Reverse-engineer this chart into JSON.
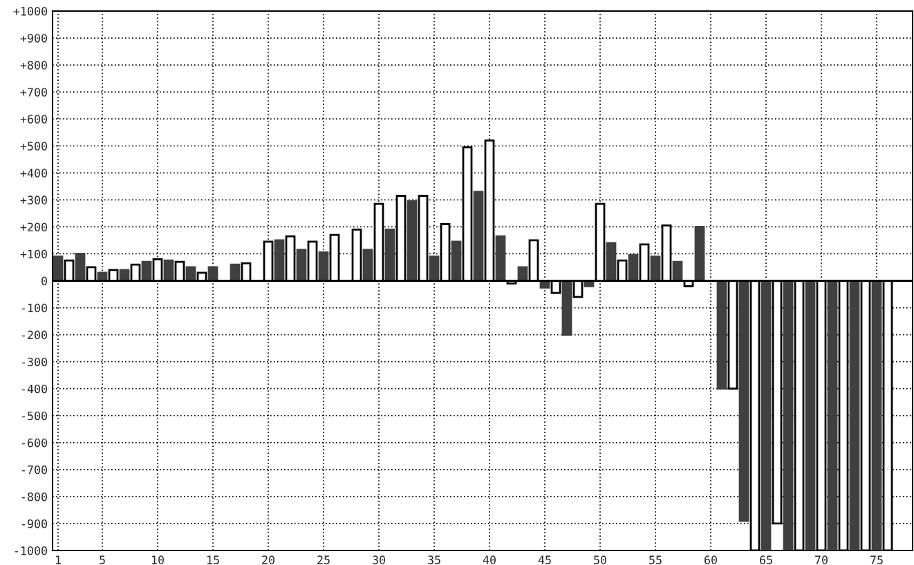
{
  "chart_data": {
    "type": "bar",
    "categories": [
      "1",
      null,
      null,
      null,
      "5",
      null,
      null,
      null,
      null,
      "10",
      null,
      null,
      null,
      null,
      "15",
      null,
      null,
      null,
      null,
      "20",
      null,
      null,
      null,
      null,
      "25",
      null,
      null,
      null,
      null,
      "30",
      null,
      null,
      null,
      null,
      "35",
      null,
      null,
      null,
      null,
      "40",
      null,
      null,
      null,
      null,
      "45",
      null,
      null,
      null,
      null,
      "50",
      null,
      null,
      null,
      null,
      "55",
      null,
      null,
      null,
      null,
      "60",
      null,
      null,
      null,
      null,
      "65",
      null,
      null,
      null,
      null,
      "70",
      null,
      null,
      null,
      null,
      "75",
      null
    ],
    "values": [
      90,
      75,
      100,
      50,
      30,
      40,
      40,
      60,
      70,
      80,
      75,
      70,
      50,
      30,
      50,
      null,
      60,
      65,
      0,
      145,
      150,
      165,
      115,
      145,
      105,
      170,
      0,
      190,
      115,
      285,
      190,
      315,
      295,
      315,
      90,
      210,
      145,
      495,
      330,
      520,
      165,
      -10,
      50,
      150,
      -25,
      -45,
      -200,
      -60,
      -20,
      285,
      140,
      75,
      95,
      135,
      90,
      205,
      70,
      -20,
      200,
      null,
      -400,
      -400,
      -890,
      -1000,
      -1000,
      -900,
      -1000,
      -1000,
      -1000,
      -1000,
      -1000,
      -1000,
      -1000,
      -1000,
      -1000,
      -1000
    ],
    "colors": [
      "#404040",
      "#ffffff",
      "#404040",
      "#ffffff",
      "#404040",
      "#ffffff",
      "#404040",
      "#ffffff",
      "#404040",
      "#ffffff",
      "#404040",
      "#ffffff",
      "#404040",
      "#ffffff",
      "#404040",
      "#ffffff",
      "#404040",
      "#ffffff",
      "#404040",
      "#ffffff",
      "#404040",
      "#ffffff",
      "#404040",
      "#ffffff",
      "#404040",
      "#ffffff",
      "#404040",
      "#ffffff",
      "#404040",
      "#ffffff",
      "#404040",
      "#ffffff",
      "#404040",
      "#ffffff",
      "#404040",
      "#ffffff",
      "#404040",
      "#ffffff",
      "#404040",
      "#ffffff",
      "#404040",
      "#ffffff",
      "#404040",
      "#ffffff",
      "#404040",
      "#ffffff",
      "#404040",
      "#ffffff",
      "#404040",
      "#ffffff",
      "#404040",
      "#ffffff",
      "#404040",
      "#ffffff",
      "#404040",
      "#ffffff",
      "#404040",
      "#ffffff",
      "#404040",
      "#ffffff",
      "#404040",
      "#ffffff",
      "#404040",
      "#ffffff",
      "#404040",
      "#ffffff",
      "#404040",
      "#ffffff",
      "#404040",
      "#ffffff",
      "#404040",
      "#ffffff",
      "#404040",
      "#ffffff",
      "#404040",
      "#ffffff"
    ],
    "ylim": [
      -1000,
      1000
    ],
    "yticks": [
      {
        "value": -1000,
        "label": "-1000"
      },
      {
        "value": -900,
        "label": "-900"
      },
      {
        "value": -800,
        "label": "-800"
      },
      {
        "value": -700,
        "label": "-700"
      },
      {
        "value": -600,
        "label": "-600"
      },
      {
        "value": -500,
        "label": "-500"
      },
      {
        "value": -400,
        "label": "-400"
      },
      {
        "value": -300,
        "label": "-300"
      },
      {
        "value": -200,
        "label": "-200"
      },
      {
        "value": -100,
        "label": "-100"
      },
      0,
      {
        "value": 100,
        "label": "+100"
      },
      {
        "value": 200,
        "label": "+200"
      },
      {
        "value": 300,
        "label": "+300"
      },
      {
        "value": 400,
        "label": "+400"
      },
      {
        "value": 500,
        "label": "+500"
      },
      {
        "value": 600,
        "label": "+600"
      },
      {
        "value": 700,
        "label": "+700"
      },
      {
        "value": 800,
        "label": "+800"
      },
      {
        "value": 900,
        "label": "+900"
      },
      {
        "value": 1000,
        "label": "+1000"
      }
    ],
    "grid": true
  }
}
